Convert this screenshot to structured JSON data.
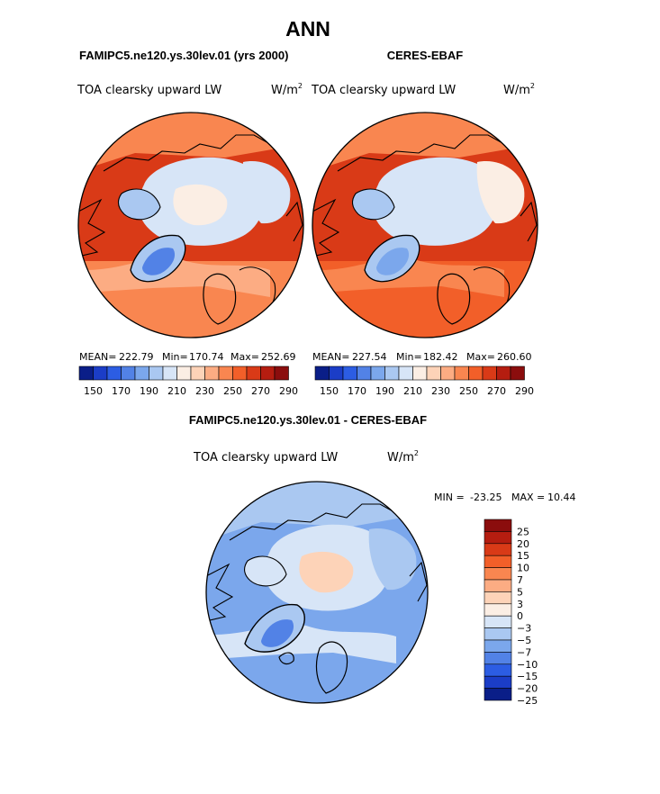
{
  "figure": {
    "title": "ANN",
    "subtitle_left": "FAMIPC5.ne120.ys.30lev.01 (yrs 2000)",
    "subtitle_right": "CERES-EBAF",
    "diff_title": "FAMIPC5.ne120.ys.30lev.01 - CERES-EBAF"
  },
  "chart_data": [
    {
      "type": "heatmap",
      "projection": "north-polar-stereographic",
      "variable": "TOA clearsky upward LW",
      "units_base": "W/m",
      "units_exp": "2",
      "stats": {
        "mean_label": "MEAN=",
        "mean": "222.79",
        "min_label": "Min=",
        "min": "170.74",
        "max_label": "Max=",
        "max": "252.69"
      },
      "colorbar_ticks": [
        "150",
        "170",
        "190",
        "210",
        "230",
        "250",
        "270",
        "290"
      ],
      "fields": {
        "ocean_subpolar": 262,
        "ocean_midlat": 245,
        "land_north": 240,
        "arctic": 205,
        "basin": 215,
        "greenland_interior": 170,
        "greenland_rim": 190,
        "canadian_archipelago": 195,
        "siberia": 205,
        "europe": 238
      }
    },
    {
      "type": "heatmap",
      "projection": "north-polar-stereographic",
      "variable": "TOA clearsky upward LW",
      "units_base": "W/m",
      "units_exp": "2",
      "stats": {
        "mean_label": "MEAN=",
        "mean": "227.54",
        "min_label": "Min=",
        "min": "182.42",
        "max_label": "Max=",
        "max": "260.60"
      },
      "colorbar_ticks": [
        "150",
        "170",
        "190",
        "210",
        "230",
        "250",
        "270",
        "290"
      ],
      "fields": {
        "ocean_subpolar": 268,
        "ocean_midlat": 255,
        "land_north": 245,
        "arctic": 208,
        "basin": 206,
        "greenland_interior": 182,
        "greenland_rim": 195,
        "canadian_archipelago": 198,
        "siberia": 210,
        "europe": 240
      }
    },
    {
      "type": "heatmap",
      "projection": "north-polar-stereographic",
      "variable": "TOA clearsky upward LW",
      "units_base": "W/m",
      "units_exp": "2",
      "range_text": {
        "min_label": "MIN =",
        "min": "-23.25",
        "max_label": "MAX =",
        "max": "10.44"
      },
      "colorbar_levels": [
        "25",
        "20",
        "15",
        "10",
        "7",
        "5",
        "3",
        "0",
        "−3",
        "−5",
        "−7",
        "−10",
        "−15",
        "−20",
        "−25"
      ],
      "colorbar_colors": [
        "#8b0d0d",
        "#b51d10",
        "#d93a17",
        "#f25f29",
        "#f98650",
        "#fcac83",
        "#fdd3b8",
        "#fbeee4",
        "#d7e5f7",
        "#aac8f1",
        "#7ba7ec",
        "#5282e6",
        "#2c5de3",
        "#1b3dc7",
        "#0a1e88"
      ],
      "fields": {
        "ocean_subpolar": -8,
        "ocean_midlat": -9,
        "land_north": -5,
        "arctic": -4,
        "basin": 2,
        "greenland_interior": -10,
        "greenland_rim": -6,
        "canadian_archipelago": -4,
        "siberia": -6,
        "europe": -3
      }
    }
  ],
  "colorbar_main": {
    "colors": [
      "#0a1e88",
      "#1b3dc7",
      "#2c5de3",
      "#5282e6",
      "#7ba7ec",
      "#aac8f1",
      "#d7e5f7",
      "#fbeee4",
      "#fdd3b8",
      "#fcac83",
      "#f98650",
      "#f25f29",
      "#d93a17",
      "#b51d10",
      "#8b0d0d"
    ]
  }
}
